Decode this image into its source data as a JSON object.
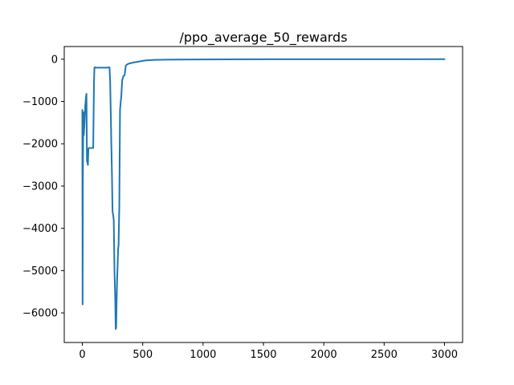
{
  "chart_data": {
    "type": "line",
    "title": "/ppo_average_50_rewards",
    "xlabel": "",
    "ylabel": "",
    "xlim": [
      -150,
      3150
    ],
    "ylim": [
      -6700,
      300
    ],
    "grid": false,
    "x_ticks": [
      0,
      500,
      1000,
      1500,
      2000,
      2500,
      3000
    ],
    "x_tick_labels": [
      "0",
      "500",
      "1000",
      "1500",
      "2000",
      "2500",
      "3000"
    ],
    "y_ticks": [
      0,
      -1000,
      -2000,
      -3000,
      -4000,
      -5000,
      -6000
    ],
    "y_tick_labels": [
      "0",
      "−1000",
      "−2000",
      "−3000",
      "−4000",
      "−5000",
      "−6000"
    ],
    "series": [
      {
        "color": "#1f77b4",
        "x": [
          0,
          2,
          4,
          8,
          12,
          18,
          24,
          30,
          34,
          38,
          42,
          46,
          50,
          55,
          60,
          70,
          80,
          90,
          96,
          100,
          104,
          110,
          130,
          150,
          170,
          190,
          210,
          220,
          225,
          230,
          235,
          240,
          245,
          250,
          256,
          260,
          266,
          272,
          276,
          280,
          284,
          288,
          292,
          296,
          300,
          306,
          312,
          318,
          322,
          326,
          330,
          340,
          350,
          360,
          372,
          390,
          420,
          460,
          520,
          600,
          700,
          800,
          1000,
          1200,
          1500,
          1800,
          2000,
          2500,
          3000
        ],
        "y": [
          -1200,
          -5800,
          -3000,
          -1250,
          -1800,
          -1500,
          -1100,
          -900,
          -820,
          -2400,
          -2450,
          -2500,
          -2120,
          -2100,
          -2100,
          -2100,
          -2100,
          -2100,
          -600,
          -200,
          -190,
          -200,
          -200,
          -200,
          -200,
          -200,
          -200,
          -190,
          -200,
          -500,
          -1200,
          -2000,
          -2700,
          -3600,
          -3700,
          -3800,
          -5000,
          -5600,
          -6380,
          -6350,
          -5700,
          -5200,
          -4900,
          -4500,
          -4400,
          -3500,
          -1200,
          -1000,
          -900,
          -700,
          -500,
          -400,
          -380,
          -150,
          -120,
          -100,
          -80,
          -60,
          -30,
          -15,
          -10,
          -8,
          -5,
          -3,
          -2,
          -2,
          -2,
          -1,
          0
        ]
      }
    ]
  }
}
